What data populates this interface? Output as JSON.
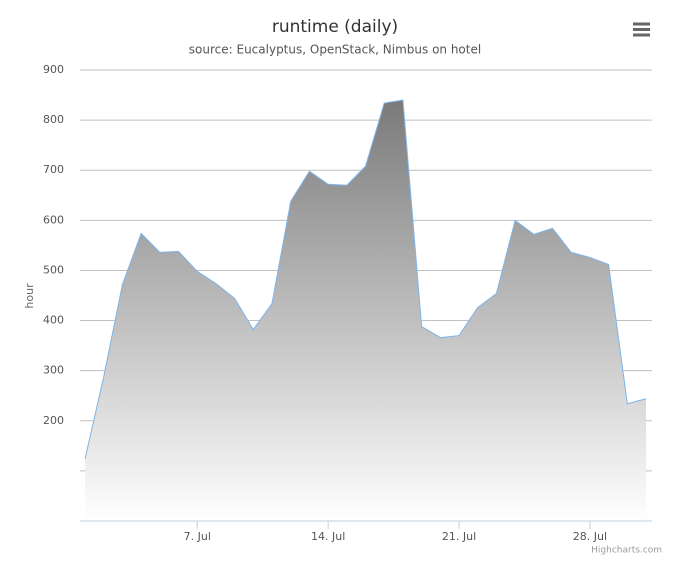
{
  "chart_data": {
    "type": "area",
    "title": "runtime (daily)",
    "subtitle": "source: Eucalyptus, OpenStack, Nimbus on hotel",
    "y_label": "hour",
    "credits": "Highcharts.com",
    "x": [
      1,
      2,
      3,
      4,
      5,
      6,
      7,
      8,
      9,
      10,
      11,
      12,
      13,
      14,
      15,
      16,
      17,
      18,
      19,
      20,
      21,
      22,
      23,
      24,
      25,
      26,
      27,
      28,
      29,
      30,
      31
    ],
    "series": [
      {
        "color": "#7cb5ec",
        "values": [
          124,
          288,
          472,
          574,
          536,
          538,
          498,
          474,
          444,
          382,
          434,
          638,
          698,
          672,
          670,
          708,
          834,
          840,
          388,
          366,
          370,
          426,
          454,
          600,
          572,
          584,
          536,
          526,
          512,
          234,
          244
        ]
      }
    ],
    "xlim": [
      0.73,
      31.32
    ],
    "xticks": [
      {
        "value": 7,
        "label": "7. Jul"
      },
      {
        "value": 14,
        "label": "14. Jul"
      },
      {
        "value": 21,
        "label": "21. Jul"
      },
      {
        "value": 28,
        "label": "28. Jul"
      }
    ],
    "ylim": [
      0,
      900
    ],
    "yticks": [
      {
        "value": 100,
        "label": null
      },
      200,
      300,
      400,
      500,
      600,
      700,
      800,
      900
    ],
    "grid": true
  }
}
